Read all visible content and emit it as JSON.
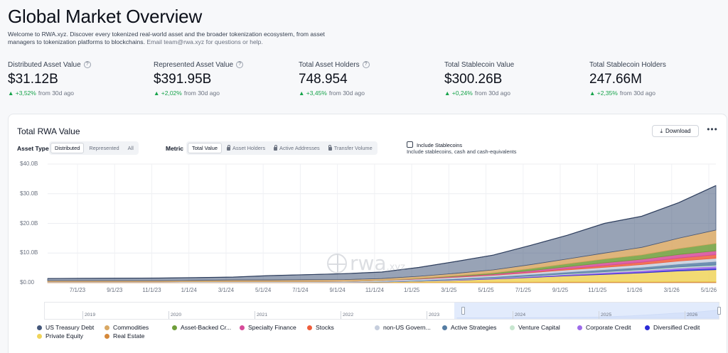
{
  "header": {
    "title": "Global Market Overview",
    "desc_main": "Welcome to RWA.xyz. Discover every tokenized real-world asset and the broader tokenization ecosystem, from asset managers to tokenization platforms to blockchains.",
    "desc_email": "Email team@rwa.xyz for questions or help."
  },
  "stats": [
    {
      "label": "Distributed Asset Value",
      "has_help": true,
      "value": "$31.12B",
      "change": "+3,52%",
      "period": "from 30d ago"
    },
    {
      "label": "Represented Asset Value",
      "has_help": true,
      "value": "$391.95B",
      "change": "+2,02%",
      "period": "from 30d ago"
    },
    {
      "label": "Total Asset Holders",
      "has_help": true,
      "value": "748.954",
      "change": "+3,45%",
      "period": "from 30d ago"
    },
    {
      "label": "Total Stablecoin Value",
      "has_help": false,
      "value": "$300.26B",
      "change": "+0,24%",
      "period": "from 30d ago"
    },
    {
      "label": "Total Stablecoin Holders",
      "has_help": false,
      "value": "247.66M",
      "change": "+2,35%",
      "period": "from 30d ago"
    }
  ],
  "card": {
    "title": "Total RWA Value",
    "download_label": "Download",
    "more_label": "•••",
    "asset_type_label": "Asset Type",
    "asset_type_options": [
      "Distributed",
      "Represented",
      "All"
    ],
    "asset_type_selected": "Distributed",
    "metric_label": "Metric",
    "metric_options": [
      "Total Value",
      "Asset Holders",
      "Active Addresses",
      "Transfer Volume"
    ],
    "metric_selected": "Total Value",
    "include_stablecoins_label": "Include Stablecoins",
    "include_stablecoins_desc": "Include stablecoins, cash and cash-equivalents",
    "include_stablecoins_checked": false,
    "watermark_main": "rwa",
    "watermark_suffix": ".xyz"
  },
  "chart_data": {
    "type": "area",
    "stacked": true,
    "title": "Total RWA Value",
    "y_ticks": [
      "$0.00",
      "$10.0B",
      "$20.0B",
      "$30.0B",
      "$40.0B"
    ],
    "ylim": [
      0,
      40
    ],
    "y_unit": "B USD",
    "x_ticks": [
      "7/1/23",
      "9/1/23",
      "11/1/23",
      "1/1/24",
      "3/1/24",
      "5/1/24",
      "7/1/24",
      "9/1/24",
      "11/1/24",
      "1/1/25",
      "3/1/25",
      "5/1/25",
      "7/1/25",
      "9/1/25",
      "11/1/25",
      "1/1/26",
      "3/1/26",
      "5/1/26"
    ],
    "grid": true,
    "x": [
      "5/1/23",
      "7/1/23",
      "9/1/23",
      "11/1/23",
      "1/1/24",
      "3/1/24",
      "5/1/24",
      "7/1/24",
      "9/1/24",
      "11/1/24",
      "1/1/25",
      "3/1/25",
      "5/1/25",
      "7/1/25",
      "9/1/25",
      "11/1/25",
      "1/1/26",
      "3/1/26",
      "5/1/26"
    ],
    "series": [
      {
        "name": "US Treasury Debt",
        "color": "#44577a",
        "values": [
          0.7,
          0.75,
          0.8,
          0.85,
          0.9,
          1.0,
          1.5,
          1.7,
          2.0,
          2.2,
          3.0,
          4.0,
          5.0,
          6.5,
          8.0,
          10.0,
          10.5,
          12.0,
          15.0
        ]
      },
      {
        "name": "Commodities",
        "color": "#d9a864",
        "values": [
          0.4,
          0.4,
          0.4,
          0.4,
          0.45,
          0.5,
          0.5,
          0.6,
          0.6,
          0.6,
          0.7,
          0.8,
          1.0,
          1.3,
          1.6,
          2.0,
          2.5,
          3.5,
          4.5
        ]
      },
      {
        "name": "Asset-Backed Cr...",
        "color": "#6f9e3a",
        "values": [
          0.0,
          0.0,
          0.0,
          0.0,
          0.0,
          0.0,
          0.0,
          0.0,
          0.0,
          0.05,
          0.1,
          0.2,
          0.4,
          0.7,
          1.0,
          1.3,
          1.5,
          2.0,
          2.5
        ]
      },
      {
        "name": "Specialty Finance",
        "color": "#d64a9a",
        "values": [
          0.0,
          0.0,
          0.0,
          0.0,
          0.0,
          0.0,
          0.0,
          0.0,
          0.0,
          0.0,
          0.1,
          0.2,
          0.3,
          0.5,
          0.7,
          0.9,
          1.0,
          1.2,
          1.3
        ]
      },
      {
        "name": "Stocks",
        "color": "#ef5d3b",
        "values": [
          0.0,
          0.0,
          0.0,
          0.0,
          0.0,
          0.0,
          0.0,
          0.0,
          0.0,
          0.0,
          0.05,
          0.1,
          0.1,
          0.2,
          0.4,
          0.6,
          0.8,
          1.0,
          1.2
        ]
      },
      {
        "name": "non-US Govern...",
        "color": "#c6cedd",
        "values": [
          0.2,
          0.2,
          0.2,
          0.2,
          0.25,
          0.3,
          0.3,
          0.3,
          0.3,
          0.4,
          0.4,
          0.5,
          0.5,
          0.6,
          0.7,
          0.8,
          0.9,
          1.0,
          1.1
        ]
      },
      {
        "name": "Active Strategies",
        "color": "#557da3",
        "values": [
          0.0,
          0.0,
          0.0,
          0.0,
          0.0,
          0.0,
          0.0,
          0.0,
          0.0,
          0.1,
          0.2,
          0.3,
          0.4,
          0.5,
          0.6,
          0.7,
          0.8,
          1.0,
          1.2
        ]
      },
      {
        "name": "Venture Capital",
        "color": "#c7e6cf",
        "values": [
          0.0,
          0.0,
          0.0,
          0.0,
          0.0,
          0.0,
          0.0,
          0.0,
          0.0,
          0.0,
          0.05,
          0.1,
          0.1,
          0.15,
          0.2,
          0.25,
          0.3,
          0.35,
          0.4
        ]
      },
      {
        "name": "Corporate Credit",
        "color": "#9d6bea",
        "values": [
          0.0,
          0.0,
          0.0,
          0.0,
          0.0,
          0.0,
          0.0,
          0.0,
          0.0,
          0.0,
          0.05,
          0.1,
          0.15,
          0.2,
          0.3,
          0.4,
          0.5,
          0.6,
          0.7
        ]
      },
      {
        "name": "Diversified Credit",
        "color": "#2a2ad6",
        "values": [
          0.0,
          0.0,
          0.0,
          0.0,
          0.0,
          0.0,
          0.0,
          0.0,
          0.0,
          0.0,
          0.0,
          0.05,
          0.1,
          0.15,
          0.2,
          0.25,
          0.3,
          0.4,
          0.5
        ]
      },
      {
        "name": "Private Equity",
        "color": "#f0d45a",
        "values": [
          0.0,
          0.0,
          0.0,
          0.0,
          0.0,
          0.0,
          0.0,
          0.0,
          0.0,
          0.1,
          0.3,
          0.6,
          1.0,
          1.5,
          2.0,
          2.5,
          3.0,
          3.6,
          4.0
        ]
      },
      {
        "name": "Real Estate",
        "color": "#d5883a",
        "values": [
          0.1,
          0.1,
          0.1,
          0.1,
          0.1,
          0.1,
          0.1,
          0.1,
          0.15,
          0.15,
          0.2,
          0.2,
          0.25,
          0.25,
          0.3,
          0.3,
          0.3,
          0.35,
          0.35
        ]
      }
    ],
    "brush_years": [
      "2019",
      "2020",
      "2021",
      "2022",
      "2023",
      "2024",
      "2025",
      "2026"
    ]
  }
}
